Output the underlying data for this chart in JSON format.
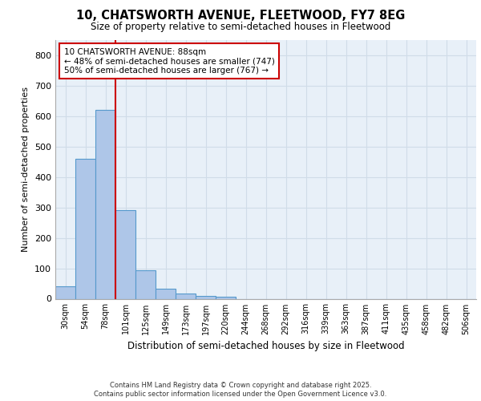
{
  "title_line1": "10, CHATSWORTH AVENUE, FLEETWOOD, FY7 8EG",
  "title_line2": "Size of property relative to semi-detached houses in Fleetwood",
  "xlabel": "Distribution of semi-detached houses by size in Fleetwood",
  "ylabel": "Number of semi-detached properties",
  "categories": [
    "30sqm",
    "54sqm",
    "78sqm",
    "101sqm",
    "125sqm",
    "149sqm",
    "173sqm",
    "197sqm",
    "220sqm",
    "244sqm",
    "268sqm",
    "292sqm",
    "316sqm",
    "339sqm",
    "363sqm",
    "387sqm",
    "411sqm",
    "435sqm",
    "458sqm",
    "482sqm",
    "506sqm"
  ],
  "values": [
    42,
    460,
    620,
    290,
    93,
    33,
    16,
    10,
    6,
    0,
    0,
    0,
    0,
    0,
    0,
    0,
    0,
    0,
    0,
    0,
    0
  ],
  "bar_color": "#aec6e8",
  "bar_edge_color": "#5599cc",
  "red_line_x": 2.5,
  "property_size": "88sqm",
  "pct_smaller": 48,
  "n_smaller": 747,
  "pct_larger": 50,
  "n_larger": 767,
  "annotation_box_color": "#ffffff",
  "annotation_border_color": "#cc0000",
  "ylim": [
    0,
    850
  ],
  "yticks": [
    0,
    100,
    200,
    300,
    400,
    500,
    600,
    700,
    800
  ],
  "grid_color": "#d0dce8",
  "background_color": "#e8f0f8",
  "footer_line1": "Contains HM Land Registry data © Crown copyright and database right 2025.",
  "footer_line2": "Contains public sector information licensed under the Open Government Licence v3.0."
}
